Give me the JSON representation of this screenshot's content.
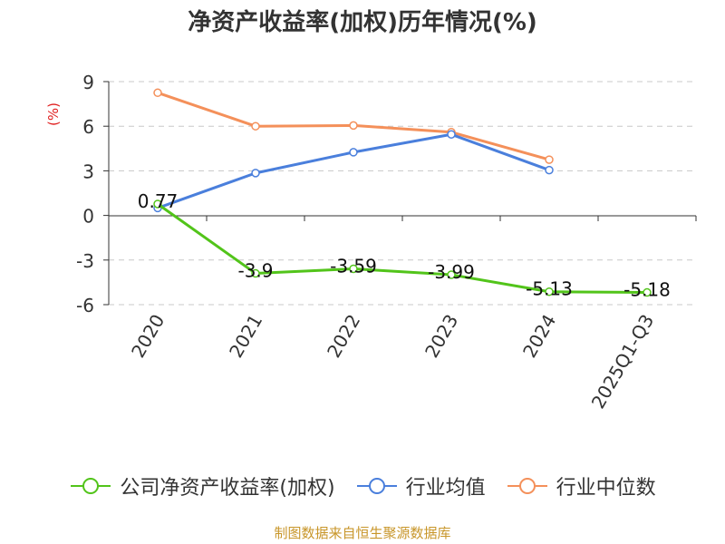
{
  "chart_data": {
    "type": "line",
    "title": "净资产收益率(加权)历年情况(%)",
    "ylabel": "(%)",
    "xlabel": "",
    "categories": [
      "2020",
      "2021",
      "2022",
      "2023",
      "2024",
      "2025Q1-Q3"
    ],
    "ylim": [
      -6,
      9
    ],
    "yticks": [
      9,
      6,
      3,
      0,
      -3,
      -6
    ],
    "grid": true,
    "legend_position": "bottom",
    "series": [
      {
        "name": "公司净资产收益率(加权)",
        "color": "#52c41a",
        "values": [
          0.77,
          -3.9,
          -3.59,
          -3.99,
          -5.13,
          -5.18
        ],
        "labels": [
          "0.77",
          "-3.9",
          "-3.59",
          "-3.99",
          "-5.13",
          "-5.18"
        ]
      },
      {
        "name": "行业均值",
        "color": "#4a7fdc",
        "values": [
          0.5,
          2.85,
          4.25,
          5.45,
          3.05,
          null
        ]
      },
      {
        "name": "行业中位数",
        "color": "#f4905a",
        "values": [
          8.25,
          6.0,
          6.05,
          5.6,
          3.75,
          null
        ]
      }
    ]
  },
  "source_note": "制图数据来自恒生聚源数据库"
}
